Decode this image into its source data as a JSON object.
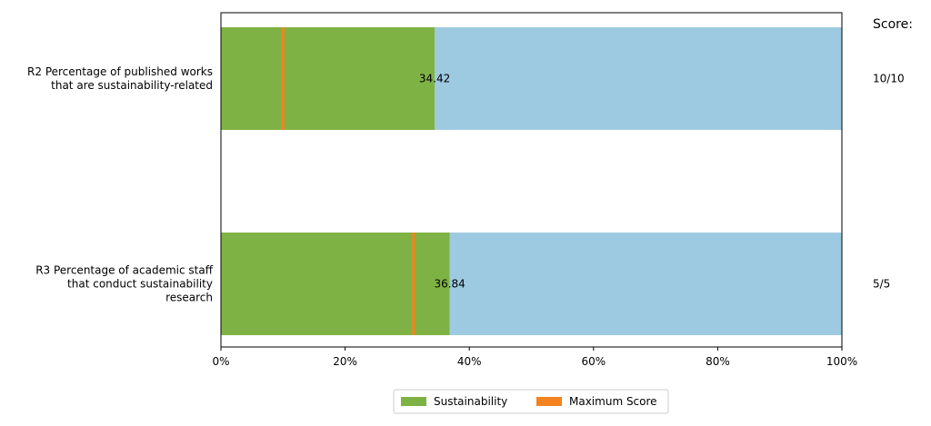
{
  "chart_data": {
    "type": "bar",
    "orientation": "horizontal",
    "stacked": true,
    "xlim": [
      0,
      100
    ],
    "x_ticks": [
      "0%",
      "20%",
      "40%",
      "60%",
      "80%",
      "100%"
    ],
    "score_header": "Score:",
    "grid": false,
    "legend_placement": "bottom-center",
    "legend": [
      {
        "label": "Sustainability",
        "color": "#7fb244",
        "shape": "box"
      },
      {
        "label": "Maximum Score",
        "color": "#f4821f",
        "shape": "box"
      }
    ],
    "bars": [
      {
        "label_lines": [
          "R2 Percentage of published works",
          "that are sustainability-related"
        ],
        "value": 34.42,
        "value_label": "34.42",
        "maximum_score_marker": 10,
        "score": "10/10"
      },
      {
        "label_lines": [
          "R3 Percentage of academic staff",
          "that conduct sustainability",
          "research"
        ],
        "value": 36.84,
        "value_label": "36.84",
        "maximum_score_marker": 31,
        "score": "5/5"
      }
    ],
    "colors": {
      "sustainability": "#7fb244",
      "remainder": "#9ecae1",
      "maximum_score": "#f4821f",
      "axis": "#000000"
    }
  }
}
